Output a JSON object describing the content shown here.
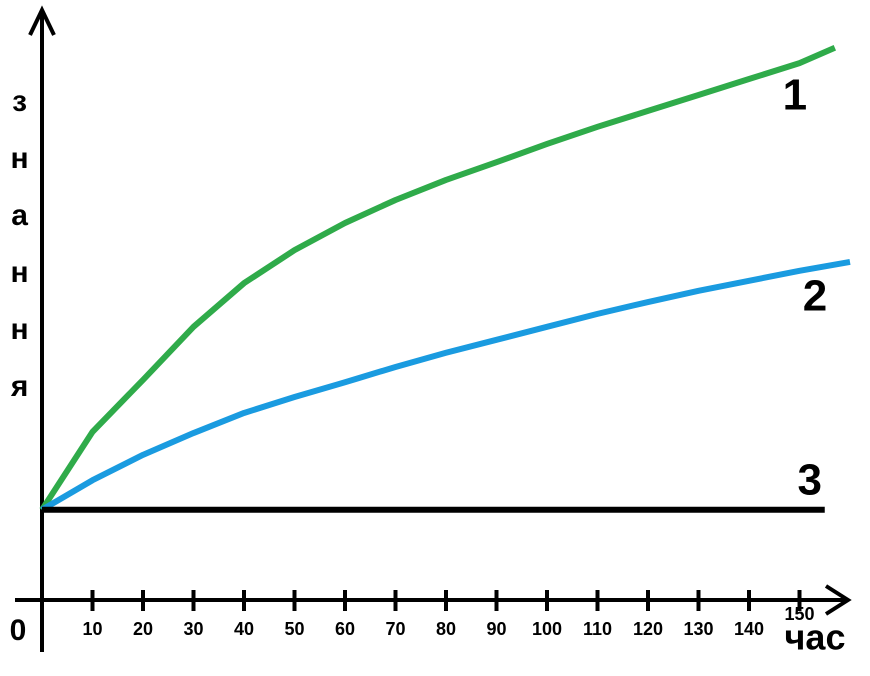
{
  "chart_data": {
    "type": "line",
    "ylabel": "знання",
    "xlabel": "час",
    "xlim": [
      0,
      161
    ],
    "ylim": [
      0,
      100
    ],
    "xticks": [
      0,
      10,
      20,
      30,
      40,
      50,
      60,
      70,
      80,
      90,
      100,
      110,
      120,
      130,
      140,
      150
    ],
    "series": [
      {
        "name": "1",
        "color": "#2fab4a",
        "x": [
          0,
          10,
          20,
          30,
          40,
          50,
          60,
          70,
          80,
          90,
          100,
          110,
          120,
          130,
          140,
          150,
          157
        ],
        "values": [
          15.3,
          28.5,
          37.3,
          46.3,
          53.7,
          59.3,
          63.9,
          67.8,
          71.2,
          74.2,
          77.3,
          80.2,
          82.9,
          85.6,
          88.3,
          91,
          93.6
        ]
      },
      {
        "name": "2",
        "color": "#1a9be0",
        "x": [
          0,
          10,
          20,
          30,
          40,
          50,
          60,
          70,
          80,
          90,
          100,
          110,
          120,
          130,
          140,
          150,
          160
        ],
        "values": [
          15.3,
          20.3,
          24.6,
          28.3,
          31.7,
          34.4,
          36.9,
          39.5,
          41.9,
          44.1,
          46.3,
          48.5,
          50.5,
          52.4,
          54.1,
          55.8,
          57.3
        ]
      },
      {
        "name": "3",
        "color": "#000000",
        "x": [
          0,
          155
        ],
        "values": [
          15.3,
          15.3
        ]
      }
    ]
  }
}
